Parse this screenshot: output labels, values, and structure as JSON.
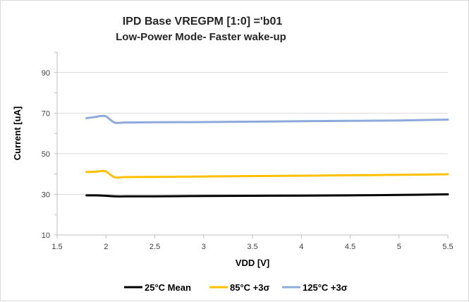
{
  "chart_data": {
    "type": "line",
    "title_line1": "IPD Base VREGPM [1:0] ='b01",
    "title_line2": "Low-Power Mode- Faster wake-up",
    "xlabel": "VDD [V]",
    "ylabel": "Current [uA]",
    "xlim": [
      1.5,
      5.5
    ],
    "ylim": [
      10,
      100
    ],
    "x_ticks": [
      "1.5",
      "2",
      "2.5",
      "3",
      "3.5",
      "4",
      "4.5",
      "5",
      "5.5"
    ],
    "y_ticks": [
      "10",
      "30",
      "50",
      "70",
      "90"
    ],
    "legend_position": "bottom",
    "grid": "horizontal",
    "series": [
      {
        "name": "25°C Mean",
        "color": "#000000",
        "x": [
          1.8,
          1.9,
          2.0,
          2.1,
          2.2,
          2.5,
          3.0,
          3.5,
          4.0,
          4.5,
          5.0,
          5.5
        ],
        "y": [
          29.5,
          29.5,
          29.3,
          29.0,
          29.0,
          29.0,
          29.2,
          29.3,
          29.4,
          29.5,
          29.7,
          30.0
        ]
      },
      {
        "name": "85°C +3σ",
        "color": "#ffc000",
        "x": [
          1.8,
          1.9,
          1.95,
          2.0,
          2.05,
          2.1,
          2.2,
          2.5,
          3.0,
          3.5,
          4.0,
          4.5,
          5.0,
          5.5
        ],
        "y": [
          41.0,
          41.2,
          41.5,
          41.3,
          39.5,
          38.3,
          38.5,
          38.6,
          38.8,
          39.0,
          39.2,
          39.4,
          39.6,
          39.9
        ]
      },
      {
        "name": "125°C +3σ",
        "color": "#8eaadb",
        "x": [
          1.8,
          1.9,
          1.95,
          2.0,
          2.05,
          2.1,
          2.2,
          2.5,
          3.0,
          3.5,
          4.0,
          4.5,
          5.0,
          5.5
        ],
        "y": [
          67.5,
          68.2,
          68.6,
          68.4,
          66.5,
          65.2,
          65.4,
          65.5,
          65.6,
          65.8,
          66.0,
          66.2,
          66.4,
          66.8
        ]
      }
    ]
  }
}
